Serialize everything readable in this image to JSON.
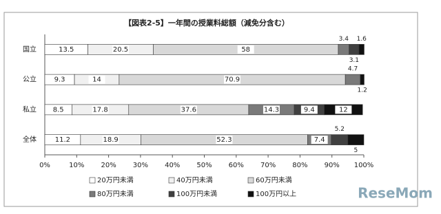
{
  "chart_data": {
    "type": "stacked-bar-horizontal",
    "title": "【図表2-5】一年間の授業料総額（減免分含む）",
    "categories": [
      "国立",
      "公立",
      "私立",
      "全体"
    ],
    "series": [
      {
        "name": "20万円未満",
        "color": "#ffffff",
        "values": [
          13.5,
          9.3,
          8.5,
          11.2
        ]
      },
      {
        "name": "40万円未満",
        "color": "#f0f0f0",
        "values": [
          20.5,
          14.0,
          17.8,
          18.9
        ]
      },
      {
        "name": "60万円未満",
        "color": "#d8d8d8",
        "values": [
          58.0,
          70.9,
          37.6,
          52.3
        ]
      },
      {
        "name": "80万円未満",
        "color": "#7a7a7a",
        "values": [
          3.4,
          4.7,
          14.3,
          7.4
        ]
      },
      {
        "name": "100万円未満",
        "color": "#404040",
        "values": [
          3.1,
          0,
          9.4,
          5.2
        ]
      },
      {
        "name": "100万円以上",
        "color": "#111111",
        "values": [
          1.6,
          1.2,
          12.0,
          5.0
        ]
      }
    ],
    "xlim": [
      0,
      100
    ],
    "xticks": [
      {
        "value": 0,
        "label": "0%"
      },
      {
        "value": 10,
        "label": "10%"
      },
      {
        "value": 20,
        "label": "20%"
      },
      {
        "value": 30,
        "label": "30%"
      },
      {
        "value": 40,
        "label": "40%"
      },
      {
        "value": 50,
        "label": "50%"
      },
      {
        "value": 60,
        "label": "60%"
      },
      {
        "value": 70,
        "label": "70%"
      },
      {
        "value": 80,
        "label": "80%"
      },
      {
        "value": 90,
        "label": "90%"
      },
      {
        "value": 100,
        "label": "100%"
      }
    ],
    "watermark": "ReseMom"
  }
}
